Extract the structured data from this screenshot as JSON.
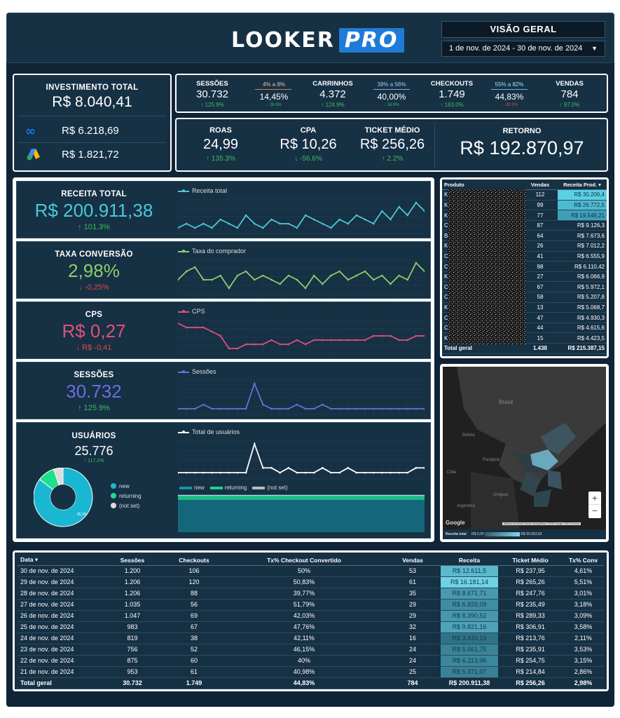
{
  "header": {
    "logo_main": "LOOKER",
    "logo_pro": "PRO",
    "view_title": "VISÃO GERAL",
    "date_range": "1 de nov. de 2024 - 30 de nov. de 2024"
  },
  "investment": {
    "label": "INVESTIMENTO TOTAL",
    "value": "R$ 8.040,41",
    "meta_value": "R$ 6.218,69",
    "google_value": "R$ 1.821,72"
  },
  "funnel": {
    "sessoes": {
      "label": "SESSÕES",
      "value": "30.732",
      "delta": "125.9%"
    },
    "rate1": {
      "range": "4% a 8%",
      "value": "14,45%",
      "delta": "28.9%"
    },
    "carrinhos": {
      "label": "CARRINHOS",
      "value": "4.372",
      "delta": "124.9%"
    },
    "rate2": {
      "range": "38% a 56%",
      "value": "40,00%",
      "delta": "16.9%"
    },
    "checkouts": {
      "label": "CHECKOUTS",
      "value": "1.749",
      "delta": "163.0%"
    },
    "rate3": {
      "range": "55% a 82%",
      "value": "44,83%",
      "delta": "-28.3%"
    },
    "vendas": {
      "label": "VENDAS",
      "value": "784",
      "delta": "97.0%"
    }
  },
  "kpis": {
    "roas": {
      "label": "ROAS",
      "value": "24,99",
      "delta": "135.3%"
    },
    "cpa": {
      "label": "CPA",
      "value": "R$ 10,26",
      "delta": "-56.6%"
    },
    "ticket": {
      "label": "TICKET MÉDIO",
      "value": "R$ 256,26",
      "delta": "2.2%"
    },
    "retorno": {
      "label": "RETORNO",
      "value": "R$ 192.870,97"
    }
  },
  "metrics": [
    {
      "label": "RECEITA TOTAL",
      "value": "R$ 200.911,38",
      "delta": "101.3%",
      "legend": "Receita total",
      "color": "#4cc9d8"
    },
    {
      "label": "TAXA CONVERSÃO",
      "value": "2,98%",
      "delta": "-0,25%",
      "legend": "Taxa do comprador",
      "color": "#8ccf6a"
    },
    {
      "label": "CPS",
      "value": "R$ 0,27",
      "delta": "R$ -0,41",
      "legend": "CPS",
      "color": "#e2507a"
    },
    {
      "label": "SESSÕES",
      "value": "30.732",
      "delta": "125.9%",
      "legend": "Sessões",
      "color": "#6a6fd8"
    },
    {
      "label": "USUÁRIOS",
      "value": "25.776",
      "delta": "117.2%",
      "legend": "Total de usuários",
      "color": "#ffffff"
    }
  ],
  "user_types": {
    "legend": [
      "new",
      "returning",
      "(not set)"
    ],
    "pie_label": "85,3%",
    "colors": [
      "#19b7d2",
      "#1ee08a",
      "#dcdcdc"
    ]
  },
  "products": {
    "headers": [
      "Produto",
      "Vendas",
      "Receita Prod."
    ],
    "rows": [
      {
        "initial": "K",
        "vendas": "112",
        "receita": "R$ 30.206,4"
      },
      {
        "initial": "K",
        "vendas": "99",
        "receita": "R$ 26.772,5"
      },
      {
        "initial": "K",
        "vendas": "77",
        "receita": "R$ 19.546,21"
      },
      {
        "initial": "C",
        "vendas": "87",
        "receita": "R$ 9.126,3"
      },
      {
        "initial": "B",
        "vendas": "64",
        "receita": "R$ 7.673,6"
      },
      {
        "initial": "K",
        "vendas": "26",
        "receita": "R$ 7.012,2"
      },
      {
        "initial": "C",
        "vendas": "41",
        "receita": "R$ 6.555,9"
      },
      {
        "initial": "C",
        "vendas": "98",
        "receita": "R$ 6.110,42"
      },
      {
        "initial": "K",
        "vendas": "27",
        "receita": "R$ 6.066,9"
      },
      {
        "initial": "C",
        "vendas": "67",
        "receita": "R$ 5.972,1"
      },
      {
        "initial": "C",
        "vendas": "58",
        "receita": "R$ 5.207,8"
      },
      {
        "initial": "K",
        "vendas": "13",
        "receita": "R$ 5.068,7"
      },
      {
        "initial": "C",
        "vendas": "47",
        "receita": "R$ 4.930,3"
      },
      {
        "initial": "C",
        "vendas": "44",
        "receita": "R$ 4.615,6"
      },
      {
        "initial": "K",
        "vendas": "15",
        "receita": "R$ 4.423,5"
      }
    ],
    "total_label": "Total geral",
    "total_vendas": "1.438",
    "total_receita": "R$ 215.387,15"
  },
  "map": {
    "labels": [
      "Brasil",
      "Bolivia",
      "Paraguai",
      "Chile",
      "Uruguai",
      "Argentina"
    ],
    "google": "Google",
    "legend_label": "Receita total",
    "legend_min": "R$ 0,00",
    "legend_max": "R$ 93.063,93",
    "attribution": "Atalhos do teclado   Dados cartográficos ©2025 Google, INEGI   Termos"
  },
  "daily": {
    "headers": [
      "Data",
      "Sessões",
      "Checkouts",
      "Tx% Checkout Convertido",
      "Vendas",
      "Receita",
      "Ticket Médio",
      "Tx% Conv"
    ],
    "rows": [
      [
        "30 de nov. de 2024",
        "1.200",
        "106",
        "50%",
        "53",
        "R$ 12.611,5",
        "R$ 237,95",
        "4,61%"
      ],
      [
        "29 de nov. de 2024",
        "1.206",
        "120",
        "50,83%",
        "61",
        "R$ 16.181,14",
        "R$ 265,26",
        "5,51%"
      ],
      [
        "28 de nov. de 2024",
        "1.206",
        "88",
        "39,77%",
        "35",
        "R$ 8.671,71",
        "R$ 247,76",
        "3,01%"
      ],
      [
        "27 de nov. de 2024",
        "1.035",
        "56",
        "51,79%",
        "29",
        "R$ 6.829,09",
        "R$ 235,49",
        "3,18%"
      ],
      [
        "26 de nov. de 2024",
        "1.047",
        "69",
        "42,03%",
        "29",
        "R$ 8.390,52",
        "R$ 289,33",
        "3,09%"
      ],
      [
        "25 de nov. de 2024",
        "983",
        "67",
        "47,76%",
        "32",
        "R$ 9.821,16",
        "R$ 306,91",
        "3,58%"
      ],
      [
        "24 de nov. de 2024",
        "819",
        "38",
        "42,11%",
        "16",
        "R$ 3.420,19",
        "R$ 213,76",
        "2,11%"
      ],
      [
        "23 de nov. de 2024",
        "756",
        "52",
        "46,15%",
        "24",
        "R$ 5.661,75",
        "R$ 235,91",
        "3,53%"
      ],
      [
        "22 de nov. de 2024",
        "875",
        "60",
        "40%",
        "24",
        "R$ 6.113,96",
        "R$ 254,75",
        "3,15%"
      ],
      [
        "21 de nov. de 2024",
        "953",
        "61",
        "40,98%",
        "25",
        "R$ 5.371,07",
        "R$ 214,84",
        "2,86%"
      ]
    ],
    "total": [
      "Total geral",
      "30.732",
      "1.749",
      "44,83%",
      "784",
      "R$ 200.911,38",
      "R$ 256,26",
      "2,98%"
    ]
  },
  "chart_data": [
    {
      "type": "line",
      "title": "Receita total",
      "series": [
        {
          "name": "Receita total",
          "values": [
            4,
            5,
            4,
            5,
            4,
            6,
            5,
            4,
            7,
            5,
            4,
            6,
            5,
            5,
            4,
            7,
            6,
            5,
            4,
            6,
            5,
            7,
            6,
            5,
            8,
            6,
            9,
            7,
            10,
            8
          ]
        }
      ]
    },
    {
      "type": "line",
      "title": "Taxa do comprador",
      "series": [
        {
          "name": "Taxa do comprador",
          "values": [
            5,
            7,
            8,
            5,
            5,
            6,
            3,
            6,
            7,
            5,
            6,
            5,
            4,
            6,
            5,
            3,
            6,
            4,
            6,
            7,
            5,
            6,
            7,
            5,
            6,
            4,
            6,
            5,
            9,
            7
          ]
        }
      ]
    },
    {
      "type": "line",
      "title": "CPS",
      "series": [
        {
          "name": "CPS",
          "values": [
            9,
            8,
            8,
            8,
            7,
            6,
            3,
            3,
            4,
            4,
            4,
            5,
            4,
            4,
            5,
            4,
            5,
            5,
            5,
            5,
            5,
            5,
            5,
            6,
            6,
            6,
            5,
            5,
            6,
            6
          ]
        }
      ]
    },
    {
      "type": "line",
      "title": "Sessões",
      "series": [
        {
          "name": "Sessões",
          "values": [
            3,
            3,
            3,
            4,
            3,
            3,
            3,
            3,
            3,
            9,
            4,
            3,
            3,
            3,
            4,
            3,
            3,
            4,
            3,
            3,
            3,
            3,
            3,
            3,
            3,
            3,
            3,
            3,
            3,
            3
          ]
        }
      ]
    },
    {
      "type": "line",
      "title": "Total de usuários",
      "series": [
        {
          "name": "Total de usuários",
          "values": [
            3,
            3,
            3,
            3,
            3,
            3,
            3,
            3,
            3,
            9,
            4,
            4,
            3,
            4,
            3,
            3,
            3,
            4,
            3,
            3,
            4,
            3,
            3,
            3,
            3,
            3,
            3,
            3,
            4,
            4
          ]
        }
      ]
    },
    {
      "type": "pie",
      "categories": [
        "new",
        "returning",
        "(not set)"
      ],
      "values": [
        85.3,
        9.5,
        5.2
      ]
    }
  ]
}
